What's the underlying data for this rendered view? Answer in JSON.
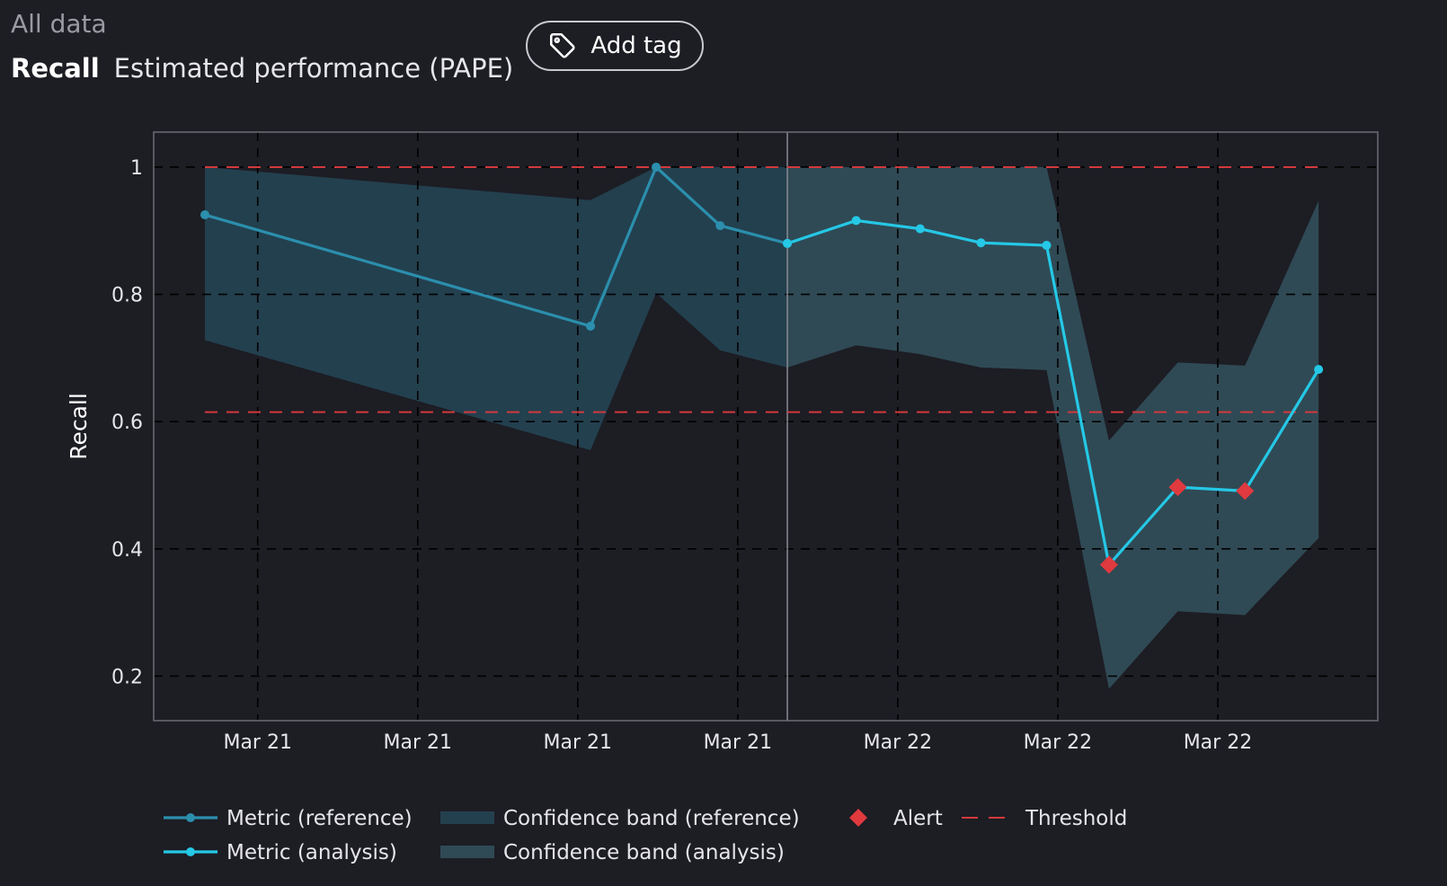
{
  "header": {
    "breadcrumb": "All data",
    "metric_name": "Recall",
    "subtitle": "Estimated performance (PAPE)",
    "add_tag_label": "Add tag"
  },
  "colors": {
    "background": "#1d1d24",
    "reference_line": "#2b8fad",
    "analysis_line": "#25c8e6",
    "reference_band": "#23404f",
    "analysis_band": "#2f4a55",
    "alert": "#e0393e",
    "threshold": "#d3393c",
    "grid": "#000000",
    "axis_text": "#e6e6ea"
  },
  "chart_data": {
    "type": "line",
    "ylabel": "Recall",
    "xlabel": "",
    "ylim": [
      0.13,
      1.055
    ],
    "yticks": [
      0.2,
      0.4,
      0.6,
      0.8,
      1
    ],
    "ytick_labels": [
      "0.2",
      "0.4",
      "0.6",
      "0.8",
      "1"
    ],
    "xticks": [
      1,
      2,
      3,
      4,
      5,
      6,
      7
    ],
    "xtick_labels": [
      "Mar 21",
      "Mar 21",
      "Mar 21",
      "Mar 21",
      "Mar 22",
      "Mar 22",
      "Mar 22"
    ],
    "xlim": [
      0.35,
      8.0
    ],
    "reference_end_x": 4.31,
    "thresholds": {
      "upper": 1.0,
      "lower": 0.615,
      "x_range": [
        0.67,
        7.63
      ]
    },
    "series": [
      {
        "name": "Metric (reference)",
        "x": [
          0.67,
          3.08,
          3.49,
          3.89,
          4.31
        ],
        "values": [
          0.925,
          0.75,
          1.0,
          0.908,
          0.88
        ],
        "lower": [
          0.728,
          0.555,
          0.802,
          0.712,
          0.685
        ],
        "upper": [
          1.0,
          0.948,
          1.0,
          1.0,
          1.0
        ]
      },
      {
        "name": "Metric (analysis)",
        "x": [
          4.31,
          4.74,
          5.14,
          5.52,
          5.93,
          6.32,
          6.75,
          7.17,
          7.63
        ],
        "values": [
          0.88,
          0.916,
          0.903,
          0.881,
          0.877,
          0.375,
          0.497,
          0.491,
          0.682
        ],
        "lower": [
          0.685,
          0.72,
          0.706,
          0.685,
          0.681,
          0.18,
          0.302,
          0.296,
          0.417
        ],
        "upper": [
          1.0,
          1.0,
          1.0,
          1.0,
          1.0,
          0.57,
          0.693,
          0.688,
          0.947
        ],
        "alerts": [
          5,
          6,
          7
        ]
      }
    ],
    "legend": {
      "placement": "bottom",
      "items": [
        {
          "key": "ref_line",
          "label": "Metric (reference)"
        },
        {
          "key": "ref_band",
          "label": "Confidence band (reference)"
        },
        {
          "key": "alert",
          "label": "Alert"
        },
        {
          "key": "threshold",
          "label": "Threshold"
        },
        {
          "key": "ana_line",
          "label": "Metric (analysis)"
        },
        {
          "key": "ana_band",
          "label": "Confidence band (analysis)"
        }
      ]
    }
  }
}
